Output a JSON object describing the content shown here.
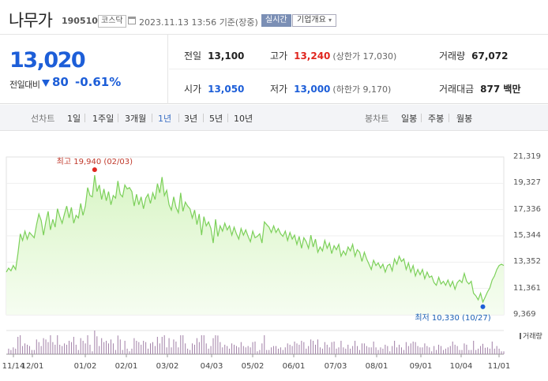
{
  "header": {
    "name": "나무가",
    "code": "190510",
    "market": "코스닥",
    "timestamp": "2023.11.13 13:56",
    "basis": "기준(장중)",
    "realtime_label": "실시간",
    "summary_label": "기업개요"
  },
  "quote": {
    "price": "13,020",
    "change_label": "전일대비",
    "change_value": "80",
    "change_pct": "-0.61%",
    "prev_close_label": "전일",
    "prev_close": "13,100",
    "high_label": "고가",
    "high": "13,240",
    "upper_limit": "(상한가 17,030)",
    "volume_label": "거래량",
    "volume": "67,072",
    "open_label": "시가",
    "open": "13,050",
    "low_label": "저가",
    "low": "13,000",
    "lower_limit": "(하한가 9,170)",
    "amount_label": "거래대금",
    "amount": "877 백만"
  },
  "periods": {
    "line_label": "선차트",
    "tabs": [
      "1일",
      "1주일",
      "3개월",
      "1년",
      "3년",
      "5년",
      "10년"
    ],
    "selected": "1년",
    "candle_label": "봉차트",
    "candle_tabs": [
      "일봉",
      "주봉",
      "월봉"
    ]
  },
  "colors": {
    "line": "#7cd05a",
    "fill": "#d9f5c6",
    "up": "#e0261f",
    "down": "#1d5ed8"
  },
  "chart_data": {
    "type": "area",
    "x_ticks": [
      "11/14",
      "12/01",
      "01/02",
      "02/01",
      "03/02",
      "04/03",
      "05/02",
      "06/01",
      "07/03",
      "08/01",
      "09/01",
      "10/04",
      "11/01"
    ],
    "y_ticks": [
      21319,
      19327,
      17336,
      15344,
      13352,
      11361,
      9369
    ],
    "ylim": [
      9369,
      21319
    ],
    "high_annotation": "최고 19,940 (02/03)",
    "low_annotation": "최저 10,330 (10/27)",
    "high": {
      "date": "02/03",
      "value": 19940
    },
    "low": {
      "date": "10/27",
      "value": 10330
    },
    "volume_label": "거래량",
    "series": [
      {
        "values": [
          12600,
          12900,
          12700,
          13100,
          12800,
          14000,
          15500,
          15000,
          15700,
          15100,
          15600,
          15400,
          15200,
          16200,
          17000,
          16500,
          15400,
          16400,
          17200,
          15800,
          16600,
          16000,
          17400,
          16800,
          16300,
          17000,
          17600,
          16700,
          17500,
          16300,
          16900,
          16700,
          17800,
          16900,
          17600,
          19000,
          18400,
          18300,
          19940,
          18700,
          19200,
          18100,
          18900,
          18000,
          18700,
          17700,
          18400,
          18200,
          19500,
          18500,
          18300,
          19200,
          18900,
          19000,
          18700,
          17600,
          18500,
          17700,
          18300,
          17400,
          18200,
          18500,
          17800,
          18600,
          18100,
          19300,
          18600,
          19800,
          18400,
          18800,
          17700,
          17300,
          18300,
          17500,
          17100,
          18600,
          17200,
          17900,
          17600,
          17400,
          16700,
          17300,
          16200,
          17000,
          15400,
          16800,
          16100,
          16400,
          15900,
          14800,
          16600,
          15300,
          16100,
          15700,
          16300,
          15800,
          16100,
          15400,
          16000,
          15500,
          15100,
          15900,
          15400,
          15800,
          15300,
          14900,
          15700,
          15200,
          15300,
          15500,
          14800,
          16400,
          16200,
          16000,
          15600,
          16100,
          15600,
          15900,
          15500,
          15300,
          15700,
          15000,
          15600,
          15100,
          15400,
          14700,
          15300,
          14400,
          15200,
          14900,
          14400,
          15400,
          14500,
          15100,
          14100,
          14500,
          14200,
          15000,
          14400,
          14800,
          14000,
          14600,
          14300,
          14700,
          13800,
          14200,
          13900,
          14500,
          14200,
          14700,
          13800,
          14300,
          14100,
          13400,
          14100,
          13600,
          13200,
          12800,
          13500,
          13100,
          13300,
          12900,
          13200,
          12600,
          13100,
          13200,
          12700,
          13600,
          13200,
          13800,
          13400,
          13600,
          12800,
          13300,
          12600,
          13100,
          12300,
          12800,
          12400,
          12800,
          12100,
          12600,
          12200,
          12300,
          11800,
          11600,
          12200,
          11700,
          11900,
          11600,
          12000,
          11500,
          11900,
          11300,
          11800,
          12000,
          11800,
          12500,
          11900,
          11700,
          11900,
          11000,
          10800,
          10500,
          11000,
          10330,
          10700,
          11100,
          11400,
          12000,
          12300,
          12800,
          13100,
          13200,
          13100
        ]
      }
    ]
  }
}
